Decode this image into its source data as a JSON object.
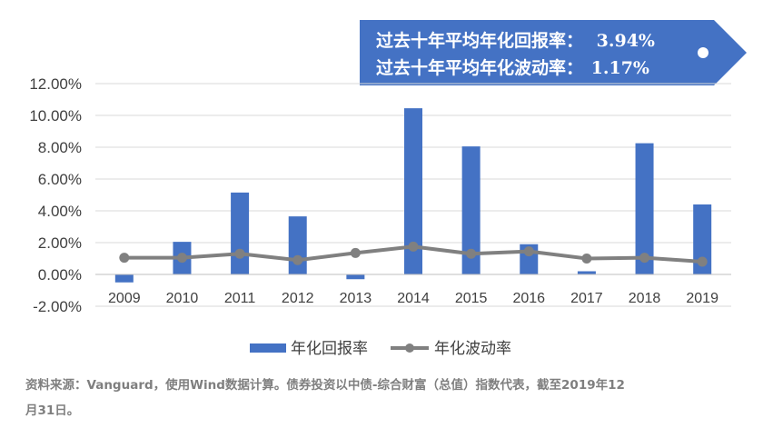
{
  "banner": {
    "line1_label": "过去十年平均年化回报率：",
    "line1_value": "3.94%",
    "line2_label": "过去十年平均年化波动率：",
    "line2_value": "1.17%",
    "bg_color": "#4472C4"
  },
  "chart_data": {
    "type": "bar",
    "categories": [
      "2009",
      "2010",
      "2011",
      "2012",
      "2013",
      "2014",
      "2015",
      "2016",
      "2017",
      "2018",
      "2019"
    ],
    "series": [
      {
        "name": "年化回报率",
        "type": "bar",
        "color": "#4472C4",
        "values": [
          -0.5,
          2.05,
          5.15,
          3.65,
          -0.3,
          10.45,
          8.05,
          1.9,
          0.2,
          8.25,
          4.4
        ]
      },
      {
        "name": "年化波动率",
        "type": "line",
        "color": "#808080",
        "values": [
          1.05,
          1.05,
          1.3,
          0.9,
          1.35,
          1.75,
          1.3,
          1.45,
          1.0,
          1.05,
          0.8
        ]
      }
    ],
    "ylim": [
      -2,
      12
    ],
    "yticks": [
      "-2.00%",
      "0.00%",
      "2.00%",
      "4.00%",
      "6.00%",
      "8.00%",
      "10.00%",
      "12.00%"
    ],
    "grid": true,
    "legend": "bottom"
  },
  "footnote": {
    "line1": "资料来源：Vanguard，使用Wind数据计算。债券投资以中债-综合财富（总值）指数代表，截至2019年12",
    "line2": "月31日。"
  }
}
